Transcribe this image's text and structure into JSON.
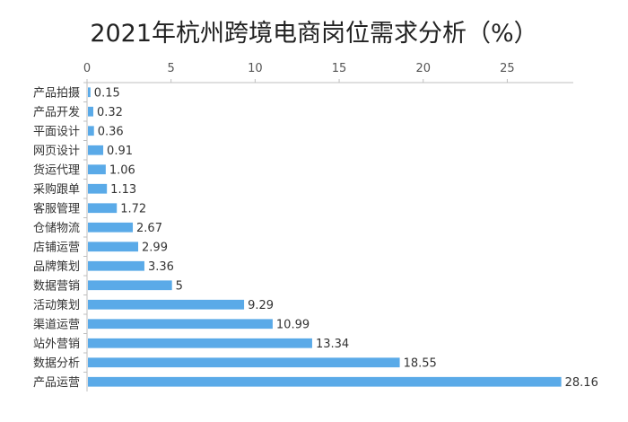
{
  "chart_data": {
    "type": "bar",
    "orientation": "horizontal",
    "title": "2021年杭州跨境电商岗位需求分析（%）",
    "xlabel": "",
    "ylabel": "",
    "xlim": [
      0,
      28.5
    ],
    "x_ticks": [
      "0",
      "5",
      "10",
      "15",
      "20",
      "25"
    ],
    "x_tick_values": [
      0,
      5,
      10,
      15,
      20,
      25
    ],
    "x_axis_position": "top",
    "grid": false,
    "legend": "none",
    "categories": [
      "产品拍摄",
      "产品开发",
      "平面设计",
      "网页设计",
      "货运代理",
      "采购跟单",
      "客服管理",
      "仓储物流",
      "店铺运营",
      "品牌策划",
      "数据营销",
      "活动策划",
      "渠道运营",
      "站外营销",
      "数据分析",
      "产品运营"
    ],
    "values": [
      0.15,
      0.32,
      0.36,
      0.91,
      1.06,
      1.13,
      1.72,
      2.67,
      2.99,
      3.36,
      5,
      9.29,
      10.99,
      13.34,
      18.55,
      28.16
    ],
    "value_labels": [
      "0.15",
      "0.32",
      "0.36",
      "0.91",
      "1.06",
      "1.13",
      "1.72",
      "2.67",
      "2.99",
      "3.36",
      "5",
      "9.29",
      "10.99",
      "13.34",
      "18.55",
      "28.16"
    ],
    "bar_color": "#5aaae8",
    "axis_color": "#bfbfbf"
  }
}
